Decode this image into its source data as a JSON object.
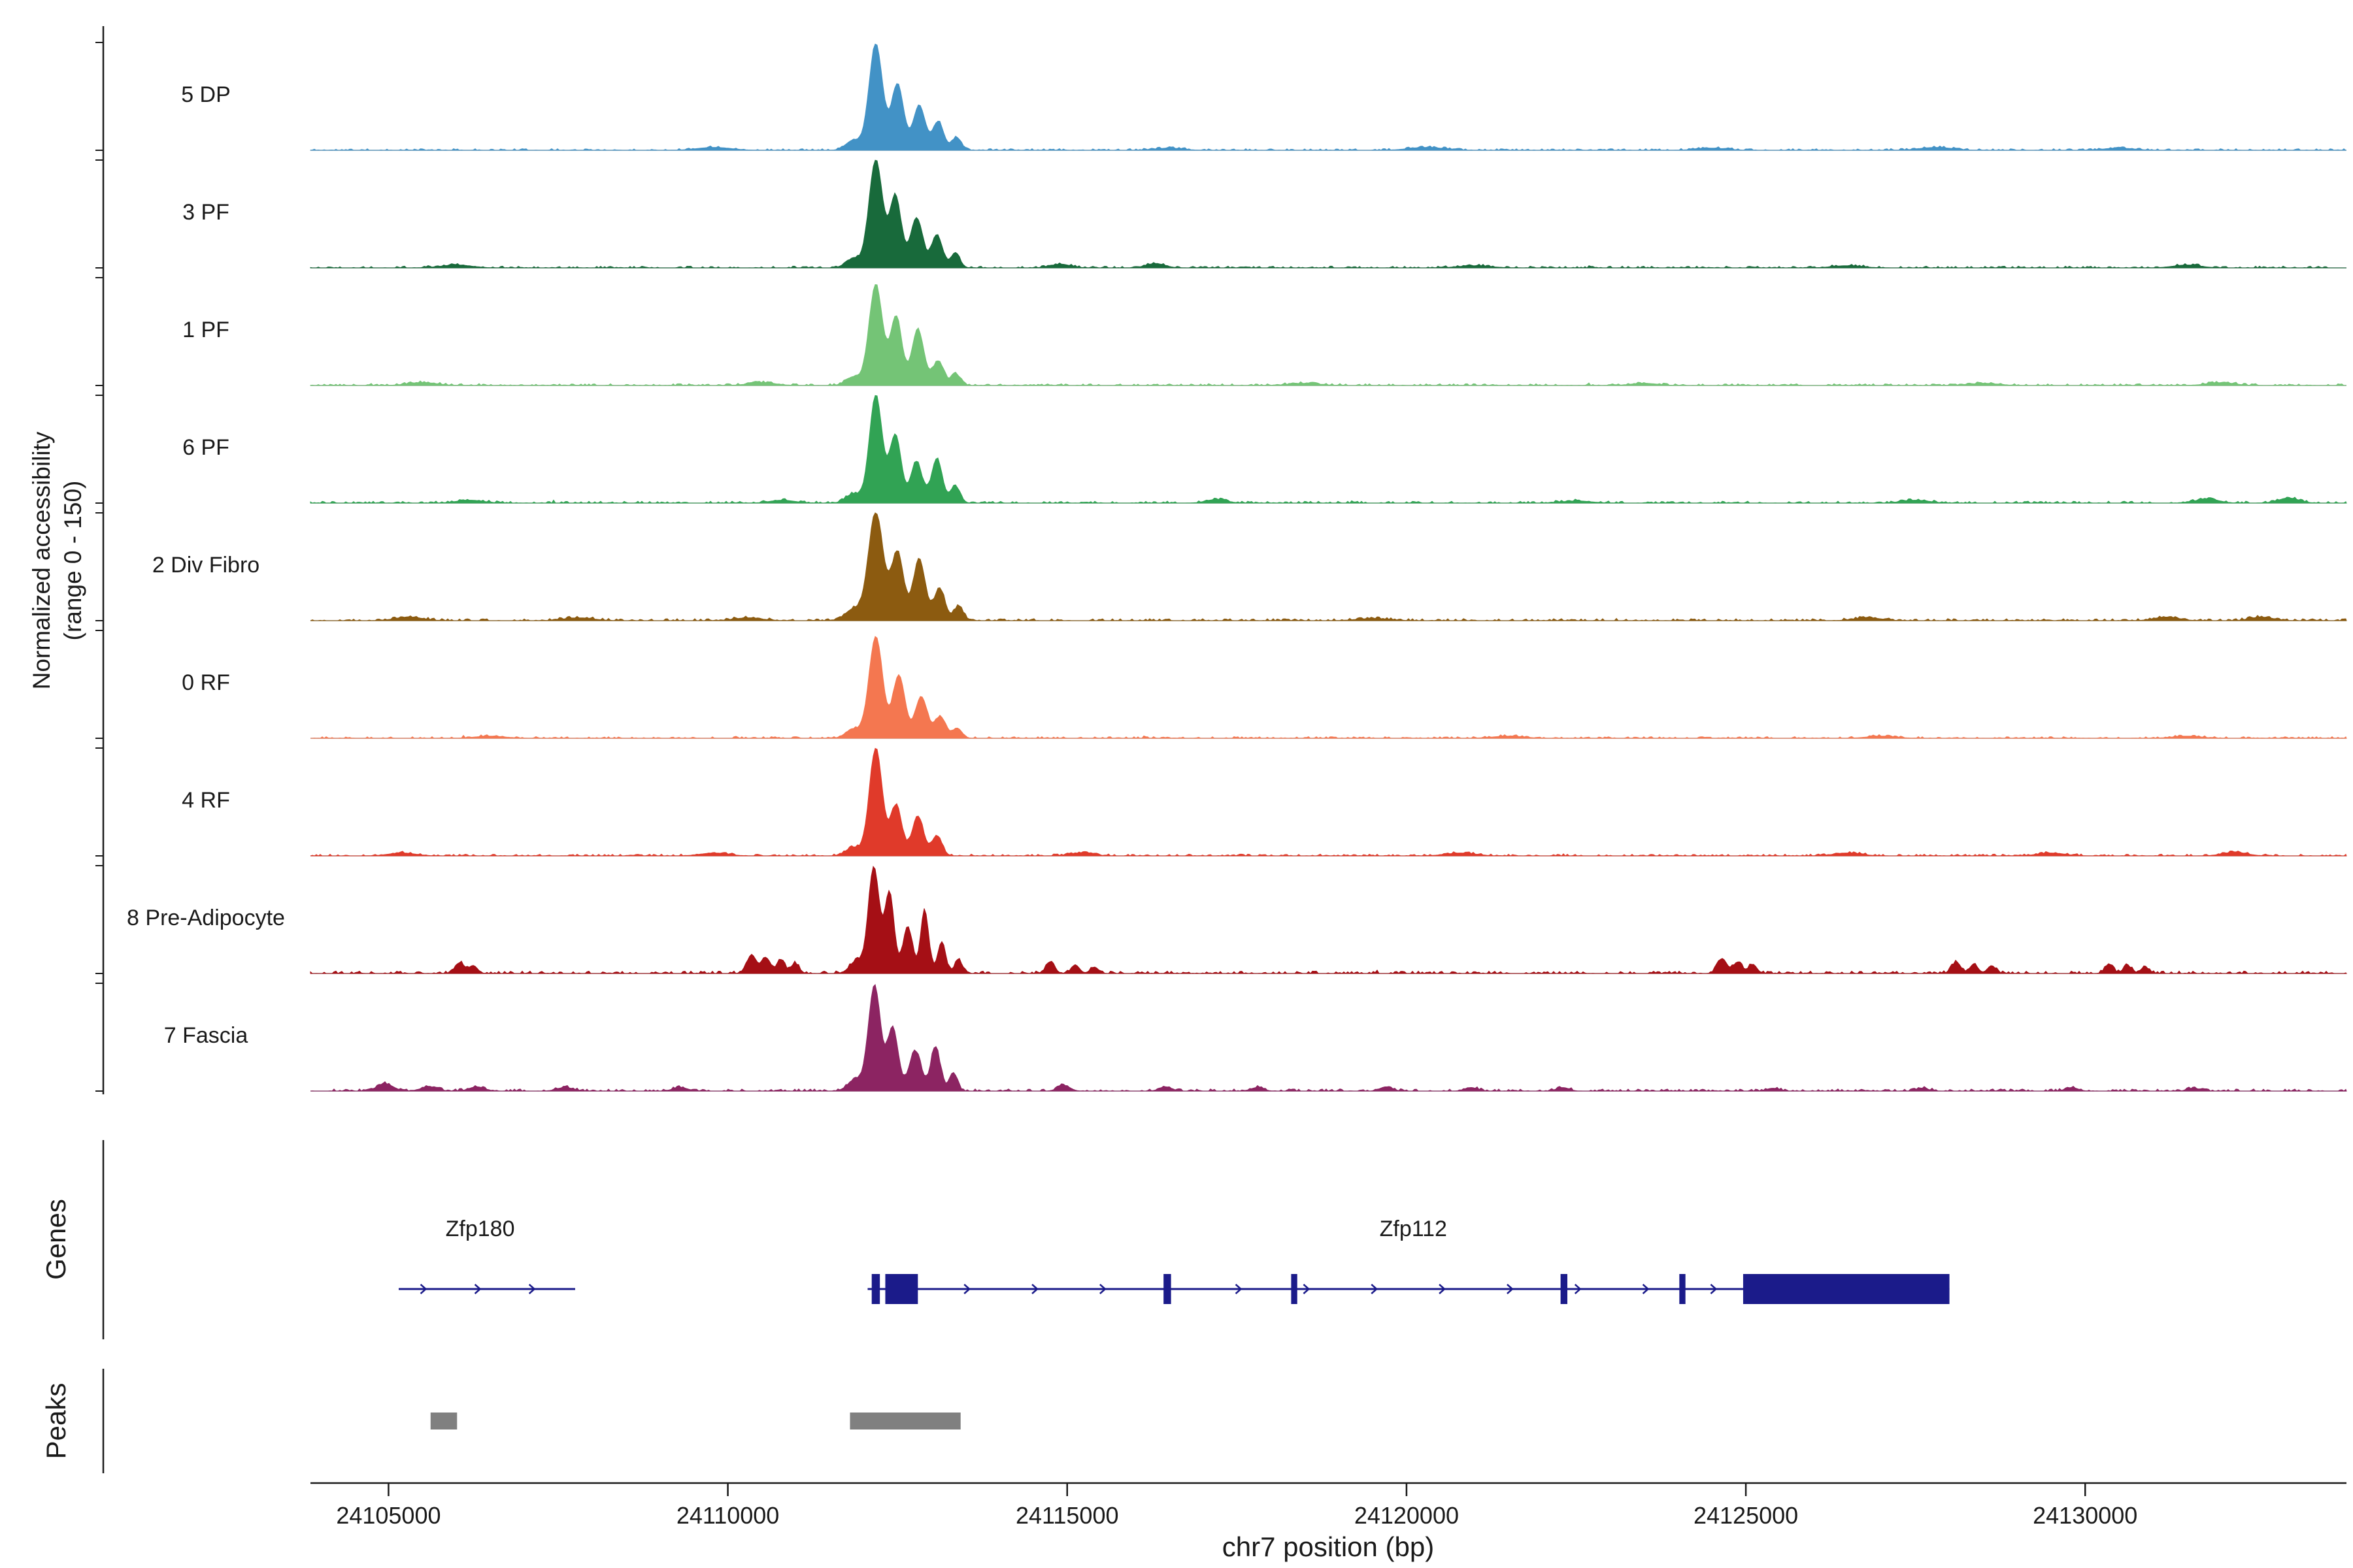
{
  "figure": {
    "x_axis_title": "chr7 position (bp)",
    "y_axis_label_line1": "Normalized accessibility",
    "y_axis_label_line2": "(range 0 - 150)",
    "genes_section_label": "Genes",
    "peaks_section_label": "Peaks"
  },
  "chart_data": {
    "type": "area",
    "subtype": "genome-browser-coverage-tracks",
    "xlabel": "chr7 position (bp)",
    "x_domain_bp": [
      24103850,
      24133850
    ],
    "x_ticks_bp": [
      24105000,
      24110000,
      24115000,
      24120000,
      24125000,
      24130000
    ],
    "y_range_per_track": [
      0,
      150
    ],
    "grid": false,
    "gene_color": "#1b1b8a",
    "peak_color": "#808080",
    "tracks": [
      {
        "label": "5 DP",
        "color": "#4292c6",
        "seed": 11,
        "noise": 2.2,
        "peaks": [
          [
            24111850,
            14,
            110
          ],
          [
            24112180,
            148,
            100
          ],
          [
            24112500,
            92,
            90
          ],
          [
            24112820,
            62,
            90
          ],
          [
            24113100,
            40,
            80
          ],
          [
            24113370,
            18,
            70
          ],
          [
            24109800,
            4,
            250
          ],
          [
            24116500,
            3,
            200
          ],
          [
            24120300,
            4,
            260
          ],
          [
            24124500,
            3,
            220
          ],
          [
            24127800,
            4,
            240
          ],
          [
            24130500,
            3,
            220
          ]
        ]
      },
      {
        "label": "3 PF",
        "color": "#186a3b",
        "seed": 22,
        "noise": 2.4,
        "peaks": [
          [
            24111850,
            13,
            110
          ],
          [
            24112180,
            150,
            100
          ],
          [
            24112470,
            100,
            85
          ],
          [
            24112780,
            70,
            90
          ],
          [
            24113080,
            46,
            80
          ],
          [
            24113350,
            20,
            70
          ],
          [
            24106000,
            4,
            220
          ],
          [
            24114900,
            5,
            150
          ],
          [
            24116300,
            6,
            140
          ],
          [
            24121000,
            3,
            240
          ],
          [
            24126500,
            3,
            220
          ],
          [
            24131500,
            4,
            200
          ]
        ]
      },
      {
        "label": "1 PF",
        "color": "#74c476",
        "seed": 33,
        "noise": 2.4,
        "peaks": [
          [
            24111850,
            12,
            110
          ],
          [
            24112180,
            140,
            100
          ],
          [
            24112480,
            96,
            85
          ],
          [
            24112800,
            78,
            90
          ],
          [
            24113100,
            34,
            80
          ],
          [
            24113360,
            16,
            70
          ],
          [
            24105500,
            4,
            220
          ],
          [
            24110500,
            4,
            200
          ],
          [
            24118500,
            3,
            220
          ],
          [
            24123500,
            3,
            200
          ],
          [
            24128500,
            3,
            220
          ],
          [
            24132000,
            4,
            200
          ]
        ]
      },
      {
        "label": "6 PF",
        "color": "#31a354",
        "seed": 44,
        "noise": 2.6,
        "peaks": [
          [
            24111850,
            13,
            110
          ],
          [
            24112180,
            150,
            95
          ],
          [
            24112470,
            95,
            85
          ],
          [
            24112780,
            58,
            85
          ],
          [
            24113080,
            62,
            80
          ],
          [
            24113350,
            24,
            70
          ],
          [
            24106200,
            4,
            200
          ],
          [
            24110800,
            4,
            180
          ],
          [
            24117200,
            5,
            150
          ],
          [
            24122500,
            3,
            220
          ],
          [
            24127500,
            4,
            200
          ],
          [
            24131800,
            6,
            160
          ],
          [
            24133000,
            7,
            150
          ]
        ]
      },
      {
        "label": "2 Div Fibro",
        "color": "#8c5b10",
        "seed": 55,
        "noise": 2.8,
        "peaks": [
          [
            24111850,
            16,
            120
          ],
          [
            24112180,
            150,
            110
          ],
          [
            24112500,
            95,
            90
          ],
          [
            24112820,
            85,
            90
          ],
          [
            24113120,
            45,
            80
          ],
          [
            24113400,
            20,
            70
          ],
          [
            24105300,
            5,
            200
          ],
          [
            24107800,
            4,
            220
          ],
          [
            24110300,
            4,
            200
          ],
          [
            24119500,
            3,
            240
          ],
          [
            24126800,
            4,
            200
          ],
          [
            24131200,
            5,
            180
          ],
          [
            24132600,
            5,
            170
          ]
        ]
      },
      {
        "label": "0 RF",
        "color": "#f47750",
        "seed": 66,
        "noise": 2.2,
        "peaks": [
          [
            24111850,
            13,
            110
          ],
          [
            24112180,
            142,
            100
          ],
          [
            24112520,
            88,
            90
          ],
          [
            24112850,
            58,
            90
          ],
          [
            24113130,
            30,
            80
          ],
          [
            24113380,
            14,
            70
          ],
          [
            24106500,
            3,
            220
          ],
          [
            24121500,
            3,
            230
          ],
          [
            24127000,
            3,
            210
          ],
          [
            24131500,
            3,
            210
          ]
        ]
      },
      {
        "label": "4 RF",
        "color": "#e03a2a",
        "seed": 77,
        "noise": 2.4,
        "peaks": [
          [
            24111850,
            12,
            110
          ],
          [
            24112180,
            150,
            95
          ],
          [
            24112480,
            70,
            85
          ],
          [
            24112800,
            55,
            85
          ],
          [
            24113080,
            28,
            75
          ],
          [
            24105200,
            4,
            200
          ],
          [
            24109800,
            4,
            200
          ],
          [
            24115200,
            4,
            170
          ],
          [
            24120800,
            4,
            220
          ],
          [
            24126500,
            4,
            200
          ],
          [
            24129500,
            4,
            200
          ],
          [
            24132200,
            5,
            180
          ]
        ]
      },
      {
        "label": "8 Pre-Adipocyte",
        "color": "#a50f15",
        "seed": 88,
        "noise": 3.4,
        "peaks": [
          [
            24111900,
            18,
            100
          ],
          [
            24112150,
            148,
            80
          ],
          [
            24112380,
            112,
            70
          ],
          [
            24112650,
            66,
            70
          ],
          [
            24112900,
            88,
            60
          ],
          [
            24113150,
            42,
            60
          ],
          [
            24113400,
            18,
            60
          ],
          [
            24106050,
            15,
            70
          ],
          [
            24106250,
            11,
            60
          ],
          [
            24110350,
            26,
            70
          ],
          [
            24110560,
            22,
            65
          ],
          [
            24110780,
            18,
            60
          ],
          [
            24110990,
            14,
            60
          ],
          [
            24114750,
            15,
            65
          ],
          [
            24115120,
            12,
            60
          ],
          [
            24115400,
            9,
            60
          ],
          [
            24124650,
            21,
            70
          ],
          [
            24124880,
            16,
            65
          ],
          [
            24125100,
            13,
            60
          ],
          [
            24128100,
            16,
            65
          ],
          [
            24128360,
            13,
            60
          ],
          [
            24128620,
            11,
            60
          ],
          [
            24130350,
            13,
            60
          ],
          [
            24130620,
            11,
            60
          ],
          [
            24130880,
            9,
            60
          ]
        ]
      },
      {
        "label": "7 Fascia",
        "color": "#8c2462",
        "seed": 99,
        "noise": 3.0,
        "peaks": [
          [
            24111880,
            16,
            110
          ],
          [
            24112160,
            146,
            90
          ],
          [
            24112430,
            88,
            80
          ],
          [
            24112760,
            56,
            90
          ],
          [
            24113060,
            62,
            70
          ],
          [
            24113320,
            26,
            60
          ],
          [
            24104950,
            10,
            120
          ],
          [
            24105600,
            6,
            120
          ],
          [
            24106300,
            6,
            110
          ],
          [
            24107600,
            5,
            120
          ],
          [
            24109300,
            5,
            110
          ],
          [
            24114950,
            8,
            90
          ],
          [
            24116450,
            6,
            90
          ],
          [
            24117800,
            5,
            90
          ],
          [
            24119700,
            6,
            90
          ],
          [
            24120950,
            5,
            90
          ],
          [
            24122300,
            5,
            90
          ],
          [
            24125400,
            4,
            90
          ],
          [
            24127600,
            4,
            90
          ],
          [
            24129800,
            5,
            90
          ],
          [
            24131600,
            4,
            90
          ]
        ]
      }
    ],
    "genes": [
      {
        "name": "Zfp180",
        "start": 24105150,
        "end": 24107750,
        "label_bp": 24106350,
        "strand": "+",
        "arrow_spacing_bp": 800,
        "exons": []
      },
      {
        "name": "Zfp112",
        "start": 24112060,
        "end": 24128000,
        "label_bp": 24120100,
        "strand": "+",
        "arrow_spacing_bp": 1000,
        "exons": [
          [
            24112120,
            24112240
          ],
          [
            24112320,
            24112800
          ],
          [
            24116420,
            24116530
          ],
          [
            24118300,
            24118390
          ],
          [
            24122270,
            24122370
          ],
          [
            24124020,
            24124110
          ],
          [
            24124960,
            24128000
          ]
        ]
      }
    ],
    "peak_regions": [
      {
        "start": 24105620,
        "end": 24106010
      },
      {
        "start": 24111800,
        "end": 24113430
      }
    ]
  }
}
